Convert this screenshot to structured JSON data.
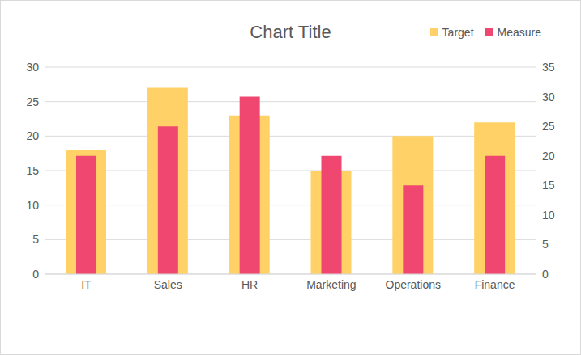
{
  "chart_data": {
    "type": "bar",
    "title": "Chart Title",
    "categories": [
      "IT",
      "Sales",
      "HR",
      "Marketing",
      "Operations",
      "Finance"
    ],
    "series": [
      {
        "name": "Target",
        "color": "#FFD166",
        "values": [
          18,
          27,
          23,
          15,
          20,
          22
        ]
      },
      {
        "name": "Measure",
        "color": "#EF476F",
        "values": [
          20,
          25,
          30,
          20,
          15,
          20
        ],
        "axis": "y2"
      }
    ],
    "ylim": [
      0,
      30
    ],
    "yticks": [
      0,
      5,
      10,
      15,
      20,
      25,
      30
    ],
    "y2lim": [
      0,
      35
    ],
    "y2ticks": [
      0,
      5,
      10,
      15,
      20,
      25,
      30,
      35
    ],
    "grid": true,
    "legend": "top-right"
  }
}
